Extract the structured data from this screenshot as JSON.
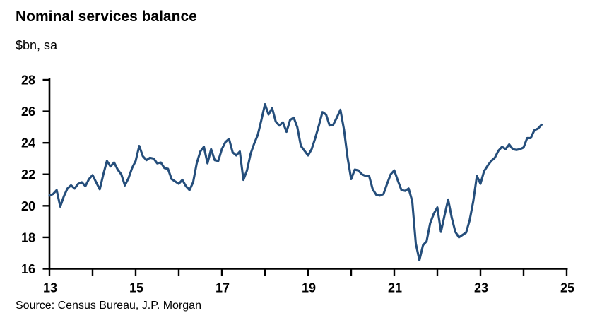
{
  "header": {
    "title": "Nominal services balance",
    "subtitle": "$bn, sa"
  },
  "footer": {
    "source": "Source: Census Bureau, J.P. Morgan"
  },
  "chart_data": {
    "type": "line",
    "title": "Nominal services balance",
    "units_label": "$bn, sa",
    "source": "Source: Census Bureau, J.P. Morgan",
    "xlabel": "",
    "ylabel": "",
    "xlim": [
      13,
      25
    ],
    "ylim": [
      16,
      28
    ],
    "grid": false,
    "legend": "none",
    "line_color": "#254e7b",
    "axis_color": "#000000",
    "x_ticks": [
      13,
      14,
      15,
      16,
      17,
      18,
      19,
      20,
      21,
      22,
      23,
      24,
      25
    ],
    "x_tick_labels": [
      "13",
      "",
      "15",
      "",
      "17",
      "",
      "19",
      "",
      "21",
      "",
      "23",
      "",
      "25"
    ],
    "y_ticks": [
      16,
      18,
      20,
      22,
      24,
      26,
      28
    ],
    "y_tick_labels": [
      "16",
      "18",
      "20",
      "22",
      "24",
      "26",
      "28"
    ],
    "series": [
      {
        "name": "Nominal services balance",
        "frequency": "monthly",
        "start": "2013-01",
        "end": "2024-06",
        "values": [
          20.65,
          20.75,
          21.0,
          19.95,
          20.6,
          21.1,
          21.3,
          21.1,
          21.4,
          21.5,
          21.25,
          21.7,
          21.95,
          21.5,
          21.05,
          22.0,
          22.85,
          22.5,
          22.75,
          22.3,
          22.0,
          21.3,
          21.75,
          22.4,
          22.85,
          23.8,
          23.15,
          22.9,
          23.05,
          23.0,
          22.7,
          22.75,
          22.4,
          22.35,
          21.7,
          21.55,
          21.4,
          21.65,
          21.25,
          21.0,
          21.5,
          22.7,
          23.45,
          23.75,
          22.7,
          23.6,
          22.9,
          22.85,
          23.6,
          24.05,
          24.25,
          23.4,
          23.2,
          23.45,
          21.65,
          22.25,
          23.3,
          23.95,
          24.5,
          25.45,
          26.45,
          25.8,
          26.2,
          25.35,
          25.1,
          25.3,
          24.7,
          25.45,
          25.6,
          25.0,
          23.8,
          23.5,
          23.2,
          23.6,
          24.3,
          25.1,
          25.95,
          25.8,
          25.1,
          25.15,
          25.6,
          26.1,
          24.85,
          23.05,
          21.7,
          22.3,
          22.25,
          22.0,
          21.9,
          21.9,
          21.05,
          20.7,
          20.65,
          20.75,
          21.4,
          22.0,
          22.25,
          21.6,
          21.0,
          20.95,
          21.1,
          20.3,
          17.6,
          16.55,
          17.5,
          17.75,
          18.9,
          19.5,
          19.9,
          18.35,
          19.4,
          20.4,
          19.25,
          18.35,
          18.0,
          18.15,
          18.3,
          19.1,
          20.3,
          21.9,
          21.4,
          22.2,
          22.55,
          22.85,
          23.05,
          23.5,
          23.75,
          23.6,
          23.9,
          23.6,
          23.55,
          23.6,
          23.7,
          24.3,
          24.3,
          24.8,
          24.9,
          25.15
        ]
      }
    ]
  }
}
